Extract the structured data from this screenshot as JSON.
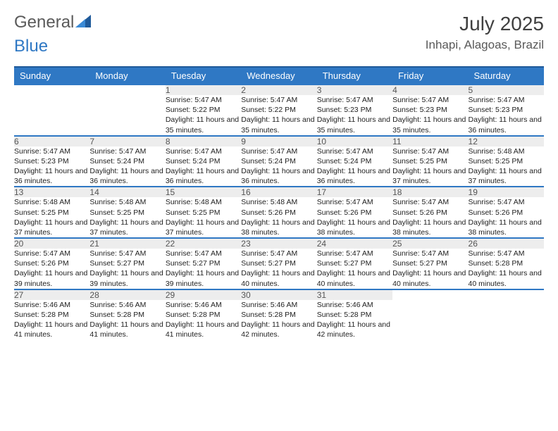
{
  "brand": {
    "part1": "General",
    "part2": "Blue"
  },
  "title": "July 2025",
  "location": "Inhapi, Alagoas, Brazil",
  "colors": {
    "header_bg": "#2f78c4",
    "header_border": "#1f5a9a",
    "daynum_bg": "#ededed",
    "text": "#222222",
    "muted": "#555555"
  },
  "dayNames": [
    "Sunday",
    "Monday",
    "Tuesday",
    "Wednesday",
    "Thursday",
    "Friday",
    "Saturday"
  ],
  "weeks": [
    [
      null,
      null,
      {
        "n": "1",
        "sr": "5:47 AM",
        "ss": "5:22 PM",
        "dl": "11 hours and 35 minutes."
      },
      {
        "n": "2",
        "sr": "5:47 AM",
        "ss": "5:22 PM",
        "dl": "11 hours and 35 minutes."
      },
      {
        "n": "3",
        "sr": "5:47 AM",
        "ss": "5:23 PM",
        "dl": "11 hours and 35 minutes."
      },
      {
        "n": "4",
        "sr": "5:47 AM",
        "ss": "5:23 PM",
        "dl": "11 hours and 35 minutes."
      },
      {
        "n": "5",
        "sr": "5:47 AM",
        "ss": "5:23 PM",
        "dl": "11 hours and 36 minutes."
      }
    ],
    [
      {
        "n": "6",
        "sr": "5:47 AM",
        "ss": "5:23 PM",
        "dl": "11 hours and 36 minutes."
      },
      {
        "n": "7",
        "sr": "5:47 AM",
        "ss": "5:24 PM",
        "dl": "11 hours and 36 minutes."
      },
      {
        "n": "8",
        "sr": "5:47 AM",
        "ss": "5:24 PM",
        "dl": "11 hours and 36 minutes."
      },
      {
        "n": "9",
        "sr": "5:47 AM",
        "ss": "5:24 PM",
        "dl": "11 hours and 36 minutes."
      },
      {
        "n": "10",
        "sr": "5:47 AM",
        "ss": "5:24 PM",
        "dl": "11 hours and 36 minutes."
      },
      {
        "n": "11",
        "sr": "5:47 AM",
        "ss": "5:25 PM",
        "dl": "11 hours and 37 minutes."
      },
      {
        "n": "12",
        "sr": "5:48 AM",
        "ss": "5:25 PM",
        "dl": "11 hours and 37 minutes."
      }
    ],
    [
      {
        "n": "13",
        "sr": "5:48 AM",
        "ss": "5:25 PM",
        "dl": "11 hours and 37 minutes."
      },
      {
        "n": "14",
        "sr": "5:48 AM",
        "ss": "5:25 PM",
        "dl": "11 hours and 37 minutes."
      },
      {
        "n": "15",
        "sr": "5:48 AM",
        "ss": "5:25 PM",
        "dl": "11 hours and 37 minutes."
      },
      {
        "n": "16",
        "sr": "5:48 AM",
        "ss": "5:26 PM",
        "dl": "11 hours and 38 minutes."
      },
      {
        "n": "17",
        "sr": "5:47 AM",
        "ss": "5:26 PM",
        "dl": "11 hours and 38 minutes."
      },
      {
        "n": "18",
        "sr": "5:47 AM",
        "ss": "5:26 PM",
        "dl": "11 hours and 38 minutes."
      },
      {
        "n": "19",
        "sr": "5:47 AM",
        "ss": "5:26 PM",
        "dl": "11 hours and 38 minutes."
      }
    ],
    [
      {
        "n": "20",
        "sr": "5:47 AM",
        "ss": "5:26 PM",
        "dl": "11 hours and 39 minutes."
      },
      {
        "n": "21",
        "sr": "5:47 AM",
        "ss": "5:27 PM",
        "dl": "11 hours and 39 minutes."
      },
      {
        "n": "22",
        "sr": "5:47 AM",
        "ss": "5:27 PM",
        "dl": "11 hours and 39 minutes."
      },
      {
        "n": "23",
        "sr": "5:47 AM",
        "ss": "5:27 PM",
        "dl": "11 hours and 40 minutes."
      },
      {
        "n": "24",
        "sr": "5:47 AM",
        "ss": "5:27 PM",
        "dl": "11 hours and 40 minutes."
      },
      {
        "n": "25",
        "sr": "5:47 AM",
        "ss": "5:27 PM",
        "dl": "11 hours and 40 minutes."
      },
      {
        "n": "26",
        "sr": "5:47 AM",
        "ss": "5:28 PM",
        "dl": "11 hours and 40 minutes."
      }
    ],
    [
      {
        "n": "27",
        "sr": "5:46 AM",
        "ss": "5:28 PM",
        "dl": "11 hours and 41 minutes."
      },
      {
        "n": "28",
        "sr": "5:46 AM",
        "ss": "5:28 PM",
        "dl": "11 hours and 41 minutes."
      },
      {
        "n": "29",
        "sr": "5:46 AM",
        "ss": "5:28 PM",
        "dl": "11 hours and 41 minutes."
      },
      {
        "n": "30",
        "sr": "5:46 AM",
        "ss": "5:28 PM",
        "dl": "11 hours and 42 minutes."
      },
      {
        "n": "31",
        "sr": "5:46 AM",
        "ss": "5:28 PM",
        "dl": "11 hours and 42 minutes."
      },
      null,
      null
    ]
  ],
  "labels": {
    "sunrise": "Sunrise:",
    "sunset": "Sunset:",
    "daylight": "Daylight:"
  }
}
